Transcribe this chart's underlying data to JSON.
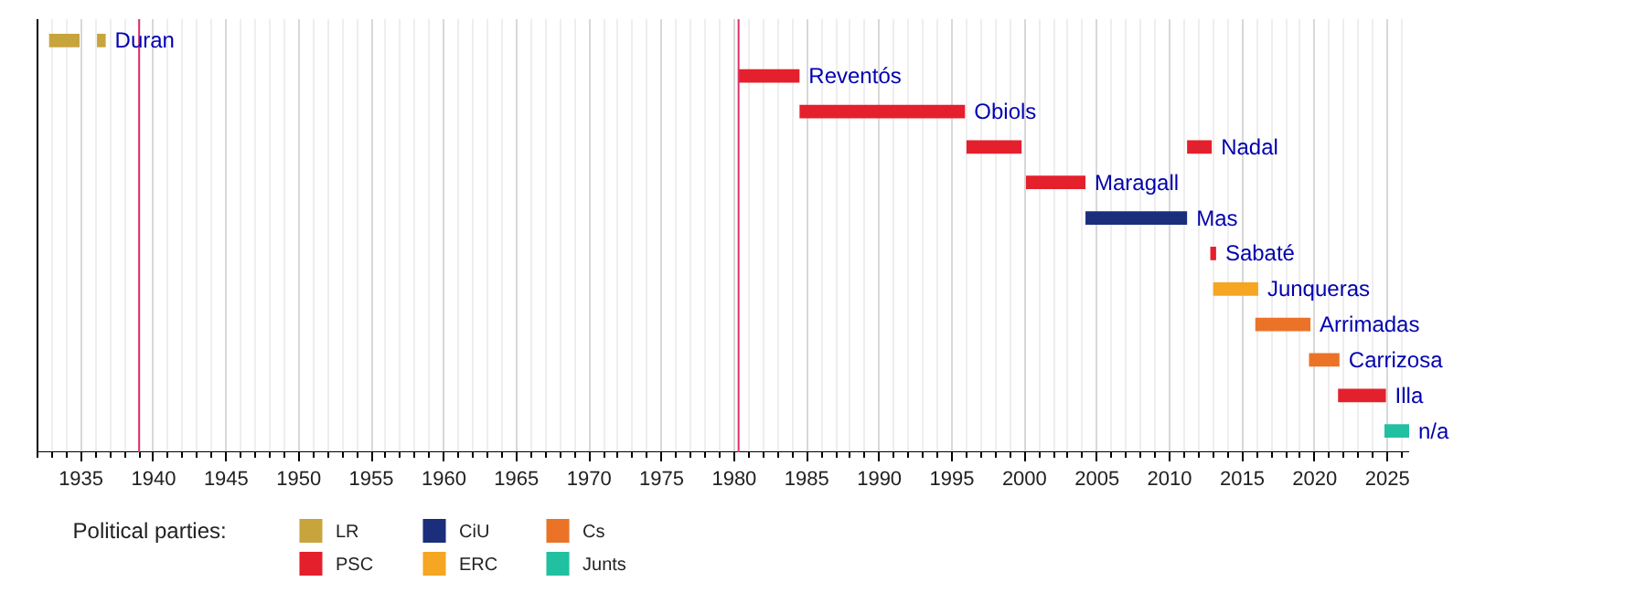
{
  "chart_data": {
    "type": "bar",
    "orientation": "horizontal",
    "legend_title": "Political parties:",
    "legend": "bottom",
    "grid": "x",
    "tick_labels": "x",
    "categories": [
      "Duran",
      "Reventós",
      "Obiols",
      "Nadal",
      "Maragall",
      "Mas",
      "Sabaté",
      "Junqueras",
      "Arrimadas",
      "Carrizosa",
      "Illa",
      "n/a"
    ],
    "xlim": [
      1932,
      2026.5
    ],
    "xticks": [
      1935,
      1940,
      1945,
      1950,
      1955,
      1960,
      1965,
      1970,
      1975,
      1980,
      1985,
      1990,
      1995,
      2000,
      2005,
      2010,
      2015,
      2020,
      2025
    ],
    "ref_lines": [
      {
        "axis": "x",
        "value": 1939,
        "label": null,
        "color": "#e0306a"
      },
      {
        "axis": "x",
        "value": 1980.3,
        "label": null,
        "color": "#e0306a"
      }
    ],
    "series": [
      {
        "name": "LR",
        "color": "#c8a43c",
        "base": [
          1932.8,
          null,
          null,
          null,
          null,
          null,
          null,
          null,
          null,
          null,
          null,
          null
        ],
        "values": [
          2.1,
          null,
          null,
          null,
          null,
          null,
          null,
          null,
          null,
          null,
          null,
          null
        ]
      },
      {
        "color": "#c8a43c",
        "base": [
          1936.1,
          null,
          null,
          null,
          null,
          null,
          null,
          null,
          null,
          null,
          null,
          null
        ],
        "values": [
          0.6,
          null,
          null,
          null,
          null,
          null,
          null,
          null,
          null,
          null,
          null,
          null
        ]
      },
      {
        "name": "PSC",
        "color": "#e4202c",
        "base": [
          null,
          1980.3,
          1984.5,
          1996.0,
          2000.1,
          null,
          2012.8,
          null,
          null,
          null,
          2021.6,
          null
        ],
        "values": [
          null,
          4.2,
          11.4,
          3.8,
          4.1,
          null,
          0.4,
          null,
          null,
          null,
          3.3,
          null
        ]
      },
      {
        "color": "#e4202c",
        "base": [
          null,
          null,
          null,
          2011.2,
          null,
          null,
          null,
          null,
          null,
          null,
          null,
          null
        ],
        "values": [
          null,
          null,
          null,
          1.7,
          null,
          null,
          null,
          null,
          null,
          null,
          null,
          null
        ]
      },
      {
        "name": "CiU",
        "color": "#1b2e7c",
        "base": [
          null,
          null,
          null,
          null,
          null,
          2004.2,
          null,
          null,
          null,
          null,
          null,
          null
        ],
        "values": [
          null,
          null,
          null,
          null,
          null,
          7.0,
          null,
          null,
          null,
          null,
          null,
          null
        ]
      },
      {
        "name": "ERC",
        "color": "#f5a623",
        "base": [
          null,
          null,
          null,
          null,
          null,
          null,
          null,
          2013.0,
          null,
          null,
          null,
          null
        ],
        "values": [
          null,
          null,
          null,
          null,
          null,
          null,
          null,
          3.1,
          null,
          null,
          null,
          null
        ]
      },
      {
        "name": "Cs",
        "color": "#eb7328",
        "base": [
          null,
          null,
          null,
          null,
          null,
          null,
          null,
          null,
          2015.9,
          2019.6,
          null,
          null
        ],
        "values": [
          null,
          null,
          null,
          null,
          null,
          null,
          null,
          null,
          3.8,
          2.1,
          null,
          null
        ]
      },
      {
        "name": "Junts",
        "color": "#20c0a0",
        "base": [
          null,
          null,
          null,
          null,
          null,
          null,
          null,
          null,
          null,
          null,
          null,
          2024.8
        ],
        "values": [
          null,
          null,
          null,
          null,
          null,
          null,
          null,
          null,
          null,
          null,
          null,
          1.7
        ]
      }
    ]
  }
}
